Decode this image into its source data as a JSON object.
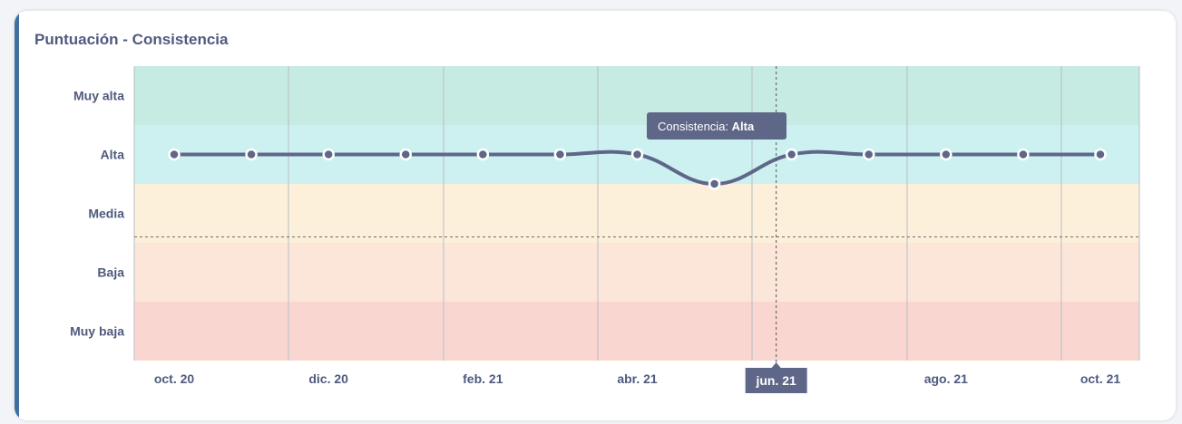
{
  "title": "Puntuación - Consistencia",
  "colors": {
    "line": "#5f6788",
    "band_muy_alta": "#c6ebe3",
    "band_alta": "#cdf1f1",
    "band_media": "#fdf0da",
    "band_baja": "#fce6da",
    "band_muy_baja": "#f9d7d0",
    "tooltip_bg": "#5f6788"
  },
  "chart_data": {
    "type": "line",
    "title": "Puntuación - Consistencia",
    "y_categories": [
      "Muy alta",
      "Alta",
      "Media",
      "Baja",
      "Muy baja"
    ],
    "x_tick_labels": [
      "oct. 20",
      "dic. 20",
      "feb. 21",
      "abr. 21",
      "jun. 21",
      "ago. 21",
      "oct. 21"
    ],
    "x": [
      "oct. 20",
      "nov. 20",
      "dic. 20",
      "ene. 21",
      "feb. 21",
      "mar. 21",
      "abr. 21",
      "may. 21",
      "jun. 21",
      "jul. 21",
      "ago. 21",
      "sep. 21",
      "oct. 21"
    ],
    "series": [
      {
        "values": [
          1.5,
          1.5,
          1.5,
          1.5,
          1.5,
          1.5,
          1.5,
          2.0,
          1.5,
          1.5,
          1.5,
          1.5,
          1.5
        ]
      }
    ],
    "highlighted_x": "jun. 21",
    "tooltip": {
      "label": "Consistencia:",
      "value": "Alta"
    },
    "grid": true
  }
}
